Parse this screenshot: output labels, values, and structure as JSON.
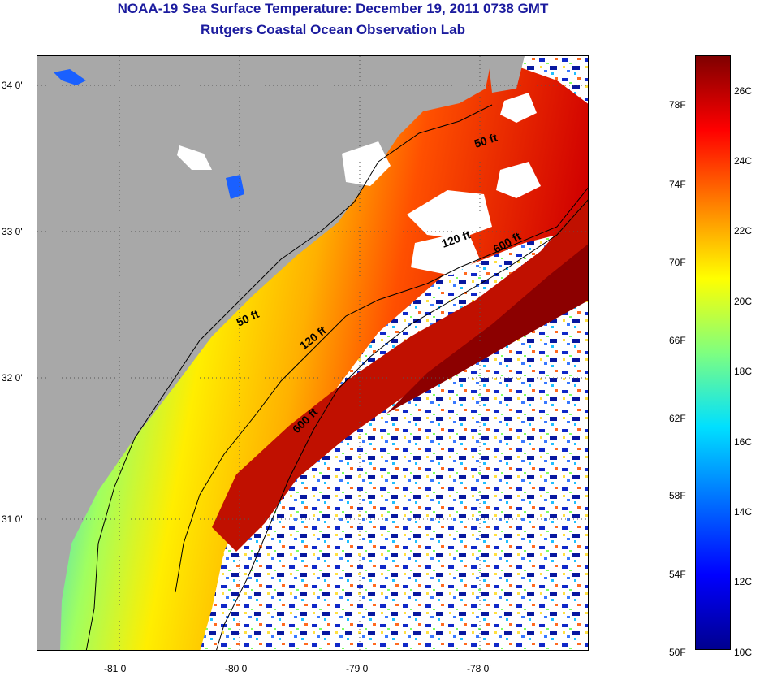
{
  "title": {
    "line1": "NOAA-19 Sea Surface Temperature:  December 19, 2011 0738 GMT",
    "line2": "Rutgers Coastal Ocean Observation Lab"
  },
  "map": {
    "latitude_labels": [
      "34 0'",
      "33 0'",
      "32 0'",
      "31 0'"
    ],
    "longitude_labels": [
      "-81 0'",
      "-80 0'",
      "-79 0'",
      "-78 0'"
    ],
    "lat_range": [
      30.2,
      34.2
    ],
    "lon_range": [
      -81.7,
      -77.2
    ],
    "depth_contours": [
      "50 ft",
      "120 ft",
      "600 ft"
    ],
    "contour_labels": [
      "50 ft",
      "50 ft",
      "120 ft",
      "120 ft",
      "600 ft",
      "600 ft"
    ],
    "colors": {
      "land": "#a8a8a8",
      "cloud": "#ffffff",
      "coastal_cold": "#1a78ff",
      "shelf_mid": "#ffee00",
      "gulf_stream": "#a00000"
    }
  },
  "colorbar": {
    "fahrenheit_labels": [
      "78F",
      "74F",
      "70F",
      "66F",
      "62F",
      "58F",
      "54F",
      "50F"
    ],
    "celsius_labels": [
      "26C",
      "24C",
      "22C",
      "20C",
      "18C",
      "16C",
      "14C",
      "12C",
      "10C"
    ],
    "range_c": [
      10,
      27
    ],
    "colormap": "jet"
  }
}
